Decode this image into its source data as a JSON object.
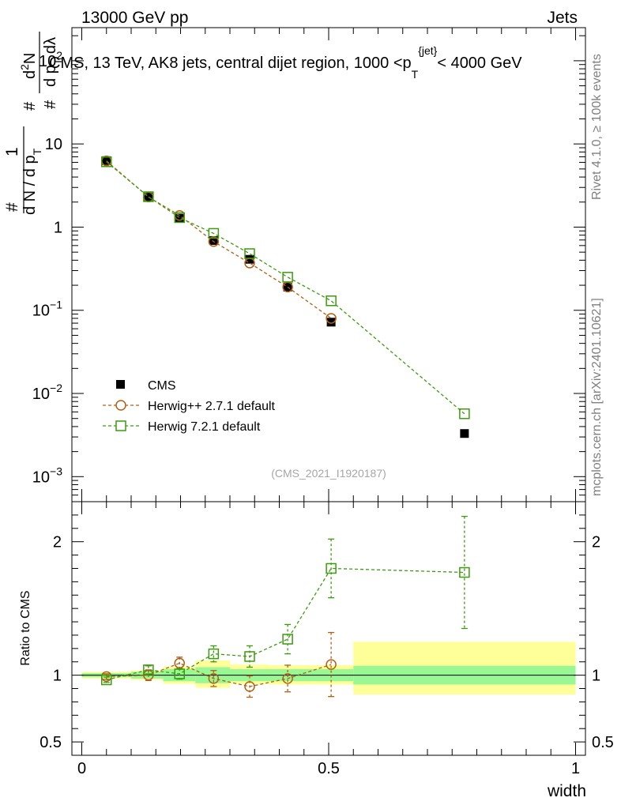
{
  "header": {
    "left": "13000 GeV pp",
    "right": "Jets"
  },
  "side_labels": {
    "rivet": "Rivet 4.1.0, ≥ 100k events",
    "mcplots": "mcplots.cern.ch [arXiv:2401.10621]"
  },
  "analysis_id": "(CMS_2021_I1920187)",
  "chart_data": [
    {
      "panel": "main",
      "type": "line",
      "title": "CMS, 13 TeV, AK8 jets, central dijet region, 1000 <p_T^{jet}< 4000 GeV",
      "title_parts": {
        "pre": "CMS, 13 TeV, AK8 jets, central dijet region, 1000 <p",
        "sub": "T",
        "sup": "{jet}",
        "post": "< 4000 GeV"
      },
      "ylabel_parts": {
        "outer_num": "1",
        "outer_den": "d N / d p",
        "outer_den_sub": "T",
        "inner_num": "d",
        "inner_num_sup": "2",
        "inner_num_tail": "N",
        "inner_den": "d p",
        "inner_den_sub": "T",
        "inner_den_tail": " dλ",
        "hash": "#"
      },
      "yscale": "log",
      "ylim": [
        0.0005,
        250
      ],
      "xlim": [
        -0.02,
        1.02
      ],
      "y_ticks": [
        {
          "value": 0.001,
          "base": "10",
          "exp": "−3"
        },
        {
          "value": 0.01,
          "base": "10",
          "exp": "−2"
        },
        {
          "value": 0.1,
          "base": "10",
          "exp": "−1"
        },
        {
          "value": 1,
          "label": "1"
        },
        {
          "value": 10,
          "label": "10"
        },
        {
          "value": 100,
          "base": "10",
          "exp": "2"
        }
      ],
      "series": [
        {
          "name": "CMS",
          "style": "data",
          "color": "#000000",
          "x": [
            0.05,
            0.135,
            0.198,
            0.267,
            0.34,
            0.417,
            0.505,
            0.775
          ],
          "y": [
            6.3,
            2.3,
            1.28,
            0.69,
            0.41,
            0.19,
            0.072,
            0.0033
          ]
        },
        {
          "name": "Herwig++ 2.7.1 default",
          "style": "circle",
          "color": "#b25f16",
          "x": [
            0.05,
            0.135,
            0.198,
            0.267,
            0.34,
            0.417,
            0.505
          ],
          "y": [
            6.25,
            2.3,
            1.38,
            0.67,
            0.37,
            0.19,
            0.08
          ]
        },
        {
          "name": "Herwig 7.2.1 default",
          "style": "square",
          "color": "#3c9b0e",
          "x": [
            0.05,
            0.135,
            0.198,
            0.267,
            0.34,
            0.417,
            0.505,
            0.775
          ],
          "y": [
            6.1,
            2.32,
            1.3,
            0.84,
            0.48,
            0.25,
            0.13,
            0.0057
          ]
        }
      ],
      "legend": {
        "position": "bottom-left",
        "entries": [
          "CMS",
          "Herwig++ 2.7.1 default",
          "Herwig 7.2.1 default"
        ]
      }
    },
    {
      "panel": "ratio",
      "type": "line",
      "ylabel": "Ratio to CMS",
      "xlabel": "width",
      "ylim": [
        0.4,
        2.3
      ],
      "xlim": [
        -0.02,
        1.02
      ],
      "x_ticks": [
        {
          "value": 0,
          "label": "0"
        },
        {
          "value": 0.5,
          "label": "0.5"
        },
        {
          "value": 1,
          "label": "1"
        }
      ],
      "y_ticks": [
        {
          "value": 0.5,
          "label": "0.5"
        },
        {
          "value": 1,
          "label": "1"
        },
        {
          "value": 2,
          "label": "2"
        }
      ],
      "bands": [
        {
          "x0": 0.0,
          "x1": 0.1,
          "inner": [
            0.985,
            1.015
          ],
          "outer": [
            0.975,
            1.025
          ]
        },
        {
          "x0": 0.1,
          "x1": 0.165,
          "inner": [
            0.975,
            1.025
          ],
          "outer": [
            0.965,
            1.035
          ]
        },
        {
          "x0": 0.165,
          "x1": 0.23,
          "inner": [
            0.955,
            1.045
          ],
          "outer": [
            0.935,
            1.065
          ]
        },
        {
          "x0": 0.23,
          "x1": 0.3,
          "inner": [
            0.94,
            1.06
          ],
          "outer": [
            0.905,
            1.11
          ]
        },
        {
          "x0": 0.3,
          "x1": 0.38,
          "inner": [
            0.955,
            1.045
          ],
          "outer": [
            0.935,
            1.08
          ]
        },
        {
          "x0": 0.38,
          "x1": 0.55,
          "inner": [
            0.955,
            1.045
          ],
          "outer": [
            0.93,
            1.075
          ]
        },
        {
          "x0": 0.55,
          "x1": 1.0,
          "inner": [
            0.93,
            1.07
          ],
          "outer": [
            0.855,
            1.25
          ]
        }
      ],
      "series": [
        {
          "name": "Herwig++ 2.7.1 default",
          "style": "circle",
          "color": "#b25f16",
          "x": [
            0.05,
            0.135,
            0.198,
            0.267,
            0.34,
            0.417,
            0.505
          ],
          "y": [
            0.99,
            1.0,
            1.09,
            0.975,
            0.915,
            0.975,
            1.08
          ],
          "err": [
            0.02,
            0.04,
            0.045,
            0.06,
            0.08,
            0.1,
            0.24
          ]
        },
        {
          "name": "Herwig 7.2.1 default",
          "style": "square",
          "color": "#3c9b0e",
          "x": [
            0.05,
            0.135,
            0.198,
            0.267,
            0.34,
            0.417,
            0.505,
            0.775
          ],
          "y": [
            0.965,
            1.04,
            1.01,
            1.16,
            1.14,
            1.27,
            1.8,
            1.77
          ],
          "err": [
            0.02,
            0.03,
            0.04,
            0.06,
            0.08,
            0.11,
            0.22,
            0.42
          ]
        }
      ]
    }
  ]
}
